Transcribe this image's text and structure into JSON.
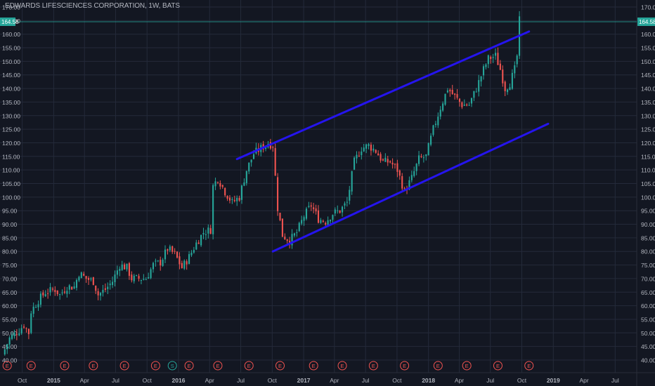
{
  "chart_data": {
    "type": "candlestick",
    "title": "EDWARDS LIFESCIENCES CORPORATION, 1W, BATS",
    "last_price_label": "164.58",
    "y_range": [
      38,
      172
    ],
    "y_ticks": [
      "40.00",
      "45.00",
      "50.00",
      "55.00",
      "60.00",
      "65.00",
      "70.00",
      "75.00",
      "80.00",
      "85.00",
      "90.00",
      "95.00",
      "100.00",
      "105.00",
      "110.00",
      "115.00",
      "120.00",
      "125.00",
      "130.00",
      "135.00",
      "140.00",
      "145.00",
      "150.00",
      "155.00",
      "160.00",
      "165.00",
      "170.00"
    ],
    "x_range": [
      "2014-07-28",
      "2019-09-02"
    ],
    "x_ticks": [
      {
        "label": "Oct",
        "date": "2014-10-01"
      },
      {
        "label": "2015",
        "date": "2015-01-01"
      },
      {
        "label": "Apr",
        "date": "2015-04-01"
      },
      {
        "label": "Jul",
        "date": "2015-07-01"
      },
      {
        "label": "Oct",
        "date": "2015-10-01"
      },
      {
        "label": "2016",
        "date": "2016-01-01"
      },
      {
        "label": "Apr",
        "date": "2016-04-01"
      },
      {
        "label": "Jul",
        "date": "2016-07-01"
      },
      {
        "label": "Oct",
        "date": "2016-10-01"
      },
      {
        "label": "2017",
        "date": "2017-01-01"
      },
      {
        "label": "Apr",
        "date": "2017-04-01"
      },
      {
        "label": "Jul",
        "date": "2017-07-01"
      },
      {
        "label": "Oct",
        "date": "2017-10-01"
      },
      {
        "label": "2018",
        "date": "2018-01-01"
      },
      {
        "label": "Apr",
        "date": "2018-04-01"
      },
      {
        "label": "Jul",
        "date": "2018-07-01"
      },
      {
        "label": "Oct",
        "date": "2018-10-01"
      },
      {
        "label": "2019",
        "date": "2019-01-01"
      },
      {
        "label": "Apr",
        "date": "2019-04-01"
      },
      {
        "label": "Jul",
        "date": "2019-07-01"
      }
    ],
    "grid": true,
    "price_path": [
      [
        "2014-08-04",
        42
      ],
      [
        "2014-08-25",
        48
      ],
      [
        "2014-09-22",
        51
      ],
      [
        "2014-10-06",
        53
      ],
      [
        "2014-10-20",
        50
      ],
      [
        "2014-10-27",
        58
      ],
      [
        "2014-11-17",
        62
      ],
      [
        "2014-12-08",
        65
      ],
      [
        "2015-01-05",
        66
      ],
      [
        "2015-01-19",
        64
      ],
      [
        "2015-02-09",
        67
      ],
      [
        "2015-03-02",
        67
      ],
      [
        "2015-03-16",
        72
      ],
      [
        "2015-04-06",
        70
      ],
      [
        "2015-04-27",
        69
      ],
      [
        "2015-05-11",
        64
      ],
      [
        "2015-06-01",
        66
      ],
      [
        "2015-06-22",
        69
      ],
      [
        "2015-07-13",
        75
      ],
      [
        "2015-08-03",
        74
      ],
      [
        "2015-08-17",
        70
      ],
      [
        "2015-09-07",
        70
      ],
      [
        "2015-09-28",
        70
      ],
      [
        "2015-10-19",
        75
      ],
      [
        "2015-11-09",
        76
      ],
      [
        "2015-11-30",
        81
      ],
      [
        "2015-12-21",
        79
      ],
      [
        "2016-01-11",
        74
      ],
      [
        "2016-02-01",
        78
      ],
      [
        "2016-02-22",
        83
      ],
      [
        "2016-03-14",
        87
      ],
      [
        "2016-04-04",
        88
      ],
      [
        "2016-04-11",
        104
      ],
      [
        "2016-04-25",
        107
      ],
      [
        "2016-05-16",
        102
      ],
      [
        "2016-06-06",
        98
      ],
      [
        "2016-06-27",
        100
      ],
      [
        "2016-07-18",
        110
      ],
      [
        "2016-08-08",
        116
      ],
      [
        "2016-08-29",
        118
      ],
      [
        "2016-09-19",
        120
      ],
      [
        "2016-10-03",
        119
      ],
      [
        "2016-10-17",
        96
      ],
      [
        "2016-10-31",
        86
      ],
      [
        "2016-11-21",
        84
      ],
      [
        "2016-12-12",
        87
      ],
      [
        "2017-01-02",
        93
      ],
      [
        "2017-01-23",
        97
      ],
      [
        "2017-02-13",
        92
      ],
      [
        "2017-03-06",
        91
      ],
      [
        "2017-03-27",
        94
      ],
      [
        "2017-04-17",
        95
      ],
      [
        "2017-05-08",
        98
      ],
      [
        "2017-05-29",
        113
      ],
      [
        "2017-06-19",
        118
      ],
      [
        "2017-07-10",
        119
      ],
      [
        "2017-07-31",
        117
      ],
      [
        "2017-08-21",
        113
      ],
      [
        "2017-09-11",
        113
      ],
      [
        "2017-10-02",
        110
      ],
      [
        "2017-10-23",
        102
      ],
      [
        "2017-11-13",
        107
      ],
      [
        "2017-12-04",
        114
      ],
      [
        "2017-12-25",
        115
      ],
      [
        "2018-01-15",
        125
      ],
      [
        "2018-02-05",
        133
      ],
      [
        "2018-02-26",
        140
      ],
      [
        "2018-03-19",
        137
      ],
      [
        "2018-04-09",
        134
      ],
      [
        "2018-04-30",
        134
      ],
      [
        "2018-05-21",
        140
      ],
      [
        "2018-06-11",
        147
      ],
      [
        "2018-06-25",
        151
      ],
      [
        "2018-07-16",
        152
      ],
      [
        "2018-07-30",
        147
      ],
      [
        "2018-08-13",
        140
      ],
      [
        "2018-08-27",
        142
      ],
      [
        "2018-09-10",
        147
      ],
      [
        "2018-09-17",
        152
      ],
      [
        "2018-09-24",
        165
      ]
    ],
    "trend_lines": [
      {
        "from": [
          "2016-06-20",
          114
        ],
        "to": [
          "2018-10-22",
          161
        ],
        "color": "#2514ee"
      },
      {
        "from": [
          "2016-10-03",
          80
        ],
        "to": [
          "2018-12-17",
          127
        ],
        "color": "#2514ee"
      }
    ],
    "events": [
      {
        "label": "E",
        "date": "2014-08-18"
      },
      {
        "label": "E",
        "date": "2014-10-27"
      },
      {
        "label": "E",
        "date": "2015-02-02"
      },
      {
        "label": "E",
        "date": "2015-04-27"
      },
      {
        "label": "E",
        "date": "2015-07-27"
      },
      {
        "label": "E",
        "date": "2015-10-26"
      },
      {
        "label": "S",
        "date": "2015-12-14",
        "color": "#26a69a"
      },
      {
        "label": "E",
        "date": "2016-02-01"
      },
      {
        "label": "E",
        "date": "2016-04-25"
      },
      {
        "label": "E",
        "date": "2016-07-25"
      },
      {
        "label": "E",
        "date": "2016-10-24"
      },
      {
        "label": "E",
        "date": "2017-01-30"
      },
      {
        "label": "E",
        "date": "2017-04-24"
      },
      {
        "label": "E",
        "date": "2017-07-24"
      },
      {
        "label": "E",
        "date": "2017-10-23"
      },
      {
        "label": "E",
        "date": "2018-01-29"
      },
      {
        "label": "E",
        "date": "2018-04-23"
      },
      {
        "label": "E",
        "date": "2018-07-23"
      },
      {
        "label": "E",
        "date": "2018-10-22"
      }
    ]
  },
  "colors": {
    "background": "#131722",
    "grid": "#242a3a",
    "text": "#b2b5be",
    "up": "#26a69a",
    "down": "#ef5350",
    "last_price_line": "#26a69a",
    "event": "#ef5350"
  }
}
